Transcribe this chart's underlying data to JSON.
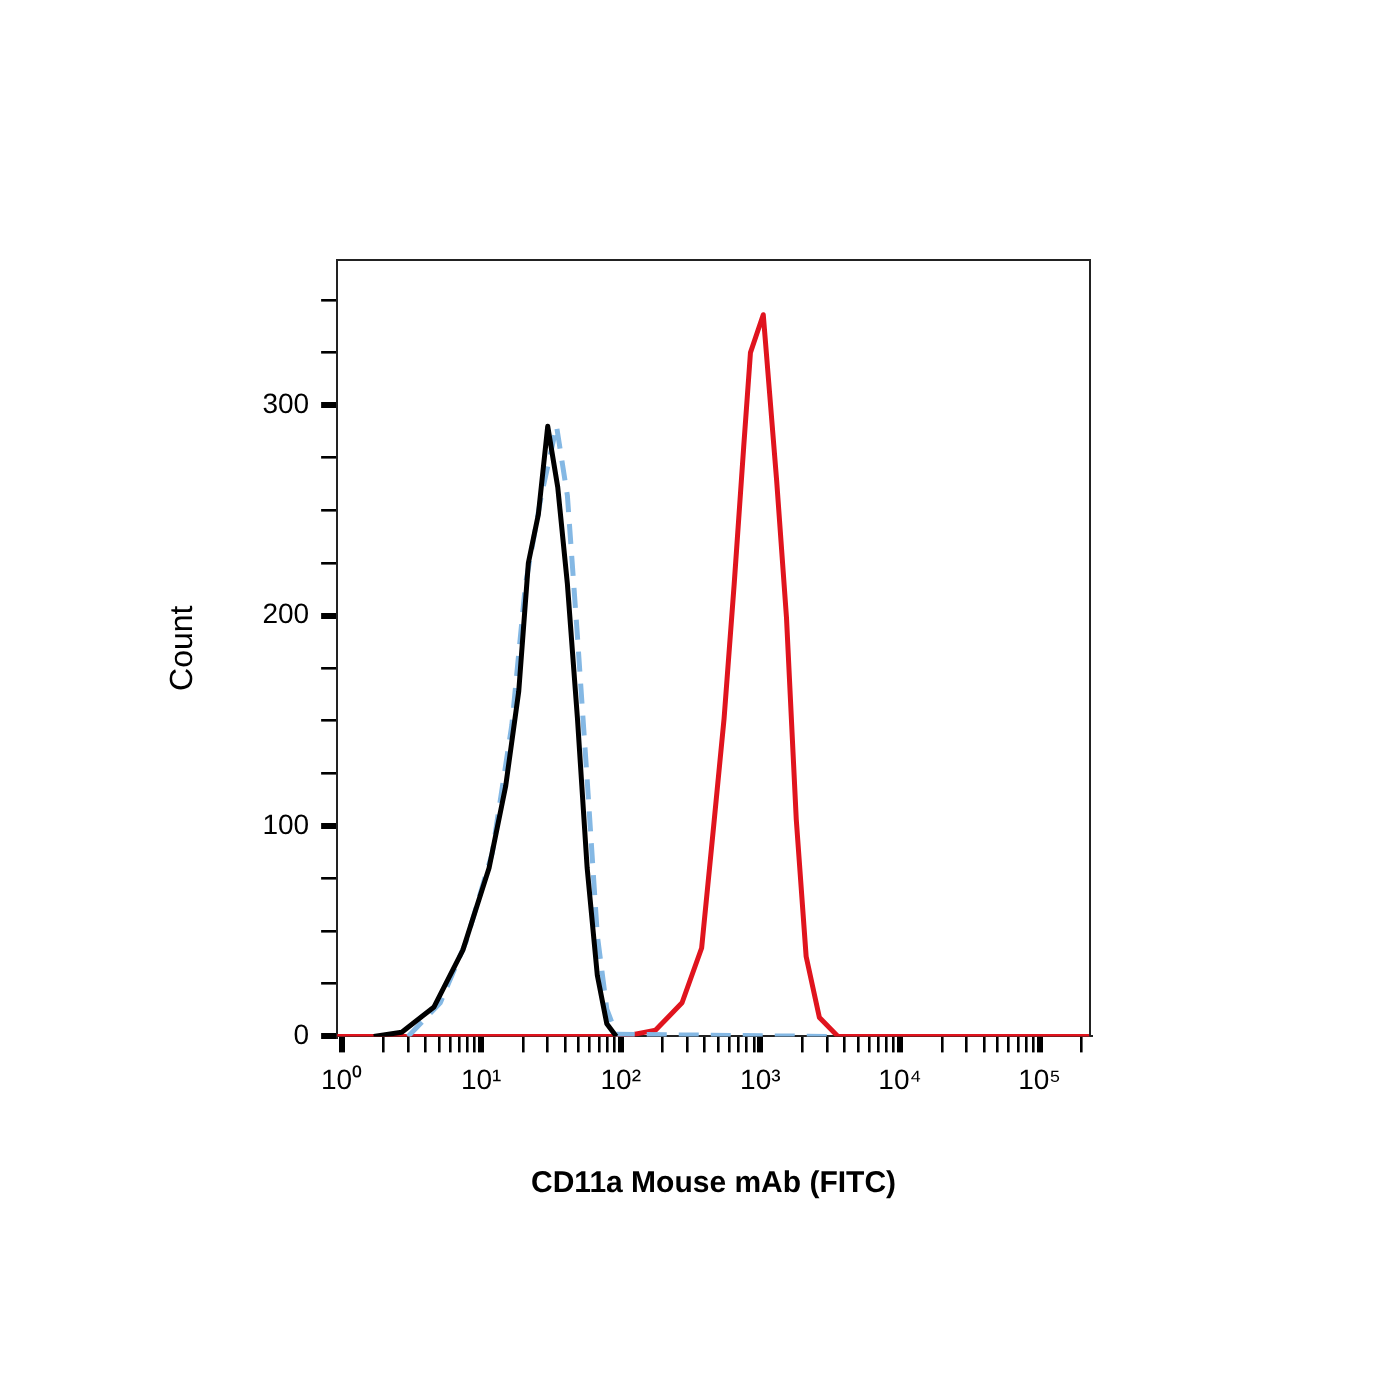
{
  "chart_data": {
    "type": "line",
    "xlabel": "CD11a Mouse mAb (FITC)",
    "ylabel": "Count",
    "log": "x",
    "grid": false,
    "legend": false,
    "marker": "none",
    "xlim": [
      0.93,
      230000
    ],
    "xticks": [
      {
        "value": 1,
        "label": "10⁰"
      },
      {
        "value": 2,
        "label": null
      },
      {
        "value": 3,
        "label": null
      },
      {
        "value": 4,
        "label": null
      },
      {
        "value": 5,
        "label": null
      },
      {
        "value": 6,
        "label": null
      },
      {
        "value": 7,
        "label": null
      },
      {
        "value": 8,
        "label": null
      },
      {
        "value": 9,
        "label": null
      },
      {
        "value": 10,
        "label": "10¹"
      },
      {
        "value": 20,
        "label": null
      },
      {
        "value": 30,
        "label": null
      },
      {
        "value": 40,
        "label": null
      },
      {
        "value": 50,
        "label": null
      },
      {
        "value": 60,
        "label": null
      },
      {
        "value": 70,
        "label": null
      },
      {
        "value": 80,
        "label": null
      },
      {
        "value": 90,
        "label": null
      },
      {
        "value": 100,
        "label": "10²"
      },
      {
        "value": 200,
        "label": null
      },
      {
        "value": 300,
        "label": null
      },
      {
        "value": 400,
        "label": null
      },
      {
        "value": 500,
        "label": null
      },
      {
        "value": 600,
        "label": null
      },
      {
        "value": 700,
        "label": null
      },
      {
        "value": 800,
        "label": null
      },
      {
        "value": 900,
        "label": null
      },
      {
        "value": 1000,
        "label": "10³"
      },
      {
        "value": 2000,
        "label": null
      },
      {
        "value": 3000,
        "label": null
      },
      {
        "value": 4000,
        "label": null
      },
      {
        "value": 5000,
        "label": null
      },
      {
        "value": 6000,
        "label": null
      },
      {
        "value": 7000,
        "label": null
      },
      {
        "value": 8000,
        "label": null
      },
      {
        "value": 9000,
        "label": null
      },
      {
        "value": 10000,
        "label": "10⁴"
      },
      {
        "value": 20000,
        "label": null
      },
      {
        "value": 30000,
        "label": null
      },
      {
        "value": 40000,
        "label": null
      },
      {
        "value": 50000,
        "label": null
      },
      {
        "value": 60000,
        "label": null
      },
      {
        "value": 70000,
        "label": null
      },
      {
        "value": 80000,
        "label": null
      },
      {
        "value": 90000,
        "label": null
      },
      {
        "value": 100000,
        "label": "10⁵"
      },
      {
        "value": 200000,
        "label": null
      }
    ],
    "ylim": [
      0,
      369
    ],
    "yticks": [
      0,
      {
        "value": 25,
        "label": null
      },
      {
        "value": 50,
        "label": null
      },
      {
        "value": 75,
        "label": null
      },
      100,
      {
        "value": 125,
        "label": null
      },
      {
        "value": 150,
        "label": null
      },
      {
        "value": 175,
        "label": null
      },
      200,
      {
        "value": 225,
        "label": null
      },
      {
        "value": 250,
        "label": null
      },
      {
        "value": 275,
        "label": null
      },
      300,
      {
        "value": 325,
        "label": null
      },
      {
        "value": 350,
        "label": null
      }
    ],
    "series": [
      {
        "color": "#000000",
        "line_style": "solid",
        "x": [
          1.7,
          2.7,
          4.6,
          7.4,
          11.4,
          15,
          18.6,
          21.8,
          25.7,
          30,
          35.4,
          41.5,
          49,
          57.5,
          68,
          79.5,
          93
        ],
        "values": [
          0,
          2,
          14,
          41,
          80,
          119,
          164,
          225,
          248,
          290,
          261,
          215,
          151,
          80,
          29,
          6,
          0
        ]
      },
      {
        "color": "#84b8e4",
        "line_style": "dashed",
        "x": [
          3,
          5.1,
          7.8,
          12,
          16.6,
          20.8,
          27,
          34.7,
          41.5,
          49,
          57.5,
          68,
          79.5,
          93,
          3000
        ],
        "values": [
          0,
          16,
          45,
          87,
          148,
          215,
          257,
          290,
          257,
          190,
          122,
          48,
          13,
          1,
          0
        ]
      },
      {
        "color": "#e0141e",
        "line_style": "solid",
        "x": [
          0.93,
          105,
          178,
          275,
          380,
          468,
          550,
          650,
          760,
          850,
          1050,
          1310,
          1540,
          1810,
          2130,
          2650,
          3600,
          230000
        ],
        "values": [
          0,
          0,
          3,
          16,
          42,
          103,
          151,
          215,
          280,
          325,
          343,
          264,
          199,
          103,
          38,
          9,
          0,
          0
        ]
      }
    ]
  }
}
